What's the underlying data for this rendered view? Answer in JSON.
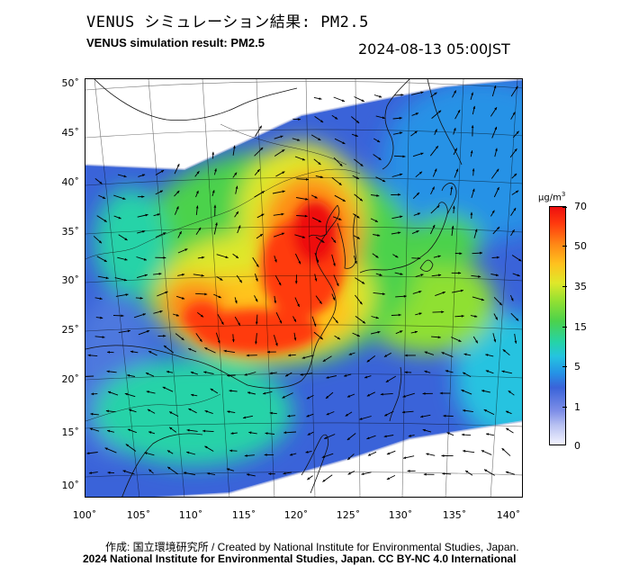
{
  "title_jp": "VENUS シミュレーション結果: PM2.5",
  "title_en": "VENUS simulation result: PM2.5",
  "timestamp": "2024-08-13 05:00JST",
  "map": {
    "lat_labels": [
      "50˚",
      "45˚",
      "40˚",
      "35˚",
      "30˚",
      "25˚",
      "20˚",
      "15˚",
      "10˚"
    ],
    "lon_labels": [
      "100˚",
      "105˚",
      "110˚",
      "115˚",
      "120˚",
      "125˚",
      "130˚",
      "135˚",
      "140˚"
    ],
    "variable": "PM2.5",
    "wind_vectors": true
  },
  "colorbar": {
    "unit": "μg/m",
    "unit_sup": "3",
    "ticks": [
      "70",
      "50",
      "35",
      "15",
      "5",
      "1",
      "0"
    ]
  },
  "credits": {
    "line1": "作成: 国立環境研究所 / Created by National Institute for Environmental Studies, Japan.",
    "line2": "2024 National Institute for Environmental Studies, Japan. CC BY-NC 4.0 International"
  }
}
